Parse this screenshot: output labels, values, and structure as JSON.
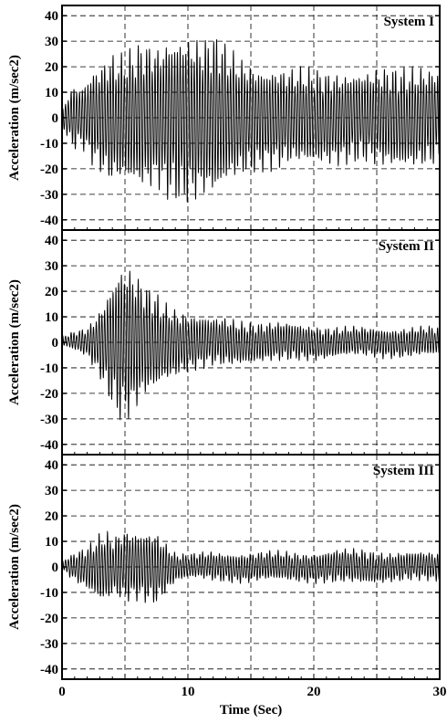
{
  "chart_data": [
    {
      "type": "line",
      "title": "System I",
      "ylabel": "Acceleration (m/sec2)",
      "xlabel": "",
      "xlim": [
        0,
        30
      ],
      "ylim": [
        -44,
        44
      ],
      "yticks": [
        "-40",
        "-30",
        "-20",
        "-10",
        "0",
        "10",
        "20",
        "30",
        "40"
      ],
      "grid": "dashed",
      "signal": {
        "frequency_hz": 4.5,
        "amplitude_envelope": [
          [
            0,
            3
          ],
          [
            0.5,
            10
          ],
          [
            1,
            14
          ],
          [
            1.5,
            12
          ],
          [
            2,
            16
          ],
          [
            2.5,
            20
          ],
          [
            3,
            22
          ],
          [
            3.5,
            25
          ],
          [
            4,
            27
          ],
          [
            4.5,
            26
          ],
          [
            5,
            27
          ],
          [
            5.5,
            28
          ],
          [
            6,
            30
          ],
          [
            6.5,
            31
          ],
          [
            7,
            30
          ],
          [
            7.5,
            29
          ],
          [
            8,
            31
          ],
          [
            8.5,
            34
          ],
          [
            9,
            34
          ],
          [
            9.5,
            36
          ],
          [
            10,
            35
          ],
          [
            10.5,
            34
          ],
          [
            11,
            33
          ],
          [
            11.5,
            33
          ],
          [
            12,
            34
          ],
          [
            12.5,
            33
          ],
          [
            13,
            29
          ],
          [
            14,
            25
          ],
          [
            15,
            23
          ],
          [
            16,
            21
          ],
          [
            17,
            21
          ],
          [
            18,
            20
          ],
          [
            19,
            20
          ],
          [
            20,
            20
          ],
          [
            22,
            19
          ],
          [
            24,
            19
          ],
          [
            26,
            21
          ],
          [
            28,
            21
          ],
          [
            30,
            20
          ]
        ]
      }
    },
    {
      "type": "line",
      "title": "System II",
      "ylabel": "Acceleration (m/sec2)",
      "xlabel": "",
      "xlim": [
        0,
        30
      ],
      "ylim": [
        -44,
        44
      ],
      "yticks": [
        "-40",
        "-30",
        "-20",
        "-10",
        "0",
        "10",
        "20",
        "30",
        "40"
      ],
      "grid": "dashed",
      "signal": {
        "frequency_hz": 4.5,
        "amplitude_envelope": [
          [
            0,
            2
          ],
          [
            1,
            4
          ],
          [
            2,
            6
          ],
          [
            2.5,
            10
          ],
          [
            3,
            14
          ],
          [
            3.5,
            20
          ],
          [
            4,
            26
          ],
          [
            4.5,
            32
          ],
          [
            5,
            32
          ],
          [
            5.5,
            31
          ],
          [
            6,
            27
          ],
          [
            6.5,
            24
          ],
          [
            7,
            22
          ],
          [
            7.5,
            20
          ],
          [
            8,
            17
          ],
          [
            9,
            14
          ],
          [
            10,
            12
          ],
          [
            11,
            11
          ],
          [
            12,
            10
          ],
          [
            13,
            10
          ],
          [
            14,
            9
          ],
          [
            16,
            8
          ],
          [
            18,
            8
          ],
          [
            20,
            7
          ],
          [
            22,
            6
          ],
          [
            24,
            6
          ],
          [
            26,
            6
          ],
          [
            28,
            6
          ],
          [
            30,
            6
          ]
        ]
      }
    },
    {
      "type": "line",
      "title": "System III",
      "ylabel": "Acceleration (m/sec2)",
      "xlabel": "Time (Sec)",
      "xlim": [
        0,
        30
      ],
      "ylim": [
        -44,
        44
      ],
      "xticks": [
        "0",
        "10",
        "20",
        "30"
      ],
      "yticks": [
        "-40",
        "-30",
        "-20",
        "-10",
        "0",
        "10",
        "20",
        "30",
        "40"
      ],
      "grid": "dashed",
      "signal": {
        "frequency_hz": 4.5,
        "amplitude_envelope": [
          [
            0,
            2
          ],
          [
            1,
            6
          ],
          [
            2,
            9
          ],
          [
            3,
            14
          ],
          [
            3.5,
            15
          ],
          [
            4,
            12
          ],
          [
            5,
            15
          ],
          [
            6,
            14
          ],
          [
            7,
            15
          ],
          [
            7.5,
            15
          ],
          [
            8,
            12
          ],
          [
            9,
            6
          ],
          [
            10,
            5
          ],
          [
            12,
            6
          ],
          [
            14,
            6
          ],
          [
            16,
            6
          ],
          [
            18,
            6
          ],
          [
            20,
            6
          ],
          [
            22,
            7
          ],
          [
            24,
            7
          ],
          [
            26,
            6
          ],
          [
            28,
            6
          ],
          [
            30,
            6
          ]
        ]
      }
    }
  ]
}
